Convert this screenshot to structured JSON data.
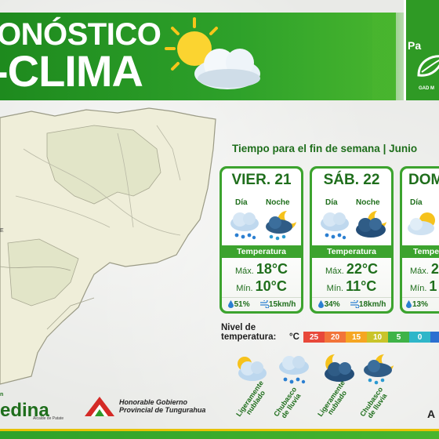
{
  "header": {
    "title_line1": "ONÓSTICO",
    "title_line2": "-CLIMA"
  },
  "logo": {
    "name": "Pa",
    "sub": "GAD M"
  },
  "map": {
    "label": "E"
  },
  "forecast": {
    "title": "Tiempo para el fin de semana | Junio",
    "day_label": "Día",
    "night_label": "Noche",
    "temp_label": "Temperatura",
    "max_label": "Máx.",
    "min_label": "Mín.",
    "days": [
      {
        "name": "VIER. 21",
        "day_icon": "rain-cloud-icon",
        "night_icon": "moon-rain-cloud-icon",
        "max": "18°C",
        "min": "10°C",
        "humidity": "51%",
        "wind": "15km/h"
      },
      {
        "name": "SÁB. 22",
        "day_icon": "rain-cloud-icon",
        "night_icon": "moon-dark-cloud-icon",
        "max": "22°C",
        "min": "11°C",
        "humidity": "34%",
        "wind": "18km/h"
      },
      {
        "name": "DOM",
        "day_icon": "sun-cloud-icon",
        "night_icon": "moon-dark-cloud-icon",
        "max": "2",
        "min": "1",
        "humidity": "13%",
        "wind": ""
      }
    ]
  },
  "scale": {
    "title_line1": "Nivel de",
    "title_line2": "temperatura:",
    "unit": "°C",
    "steps": [
      {
        "label": "25",
        "color": "#e8483a"
      },
      {
        "label": "20",
        "color": "#f2743a"
      },
      {
        "label": "15",
        "color": "#f5a623"
      },
      {
        "label": "10",
        "color": "#c9c42a"
      },
      {
        "label": "5",
        "color": "#3fb348"
      },
      {
        "label": "0",
        "color": "#2fb6c9"
      },
      {
        "label": "-",
        "color": "#2c6fd1"
      }
    ]
  },
  "legend": [
    {
      "icon": "partly-cloudy-icon",
      "line1": "Ligeramente",
      "line2": "nublado"
    },
    {
      "icon": "rain-shower-icon",
      "line1": "Chubasco",
      "line2": "de lluvia"
    },
    {
      "icon": "night-partly-cloudy-icon",
      "line1": "Ligeramente",
      "line2": "nublado"
    },
    {
      "icon": "night-rain-shower-icon",
      "line1": "Chubasco",
      "line2": "de lluvia"
    }
  ],
  "footer": {
    "municipal_prefix": "n",
    "municipal_name": "edina",
    "municipal_sub": "Alcalde de Patate",
    "province_line1": "Honorable Gobierno",
    "province_line2": "Provincial de Tungurahua",
    "corner": "A"
  }
}
